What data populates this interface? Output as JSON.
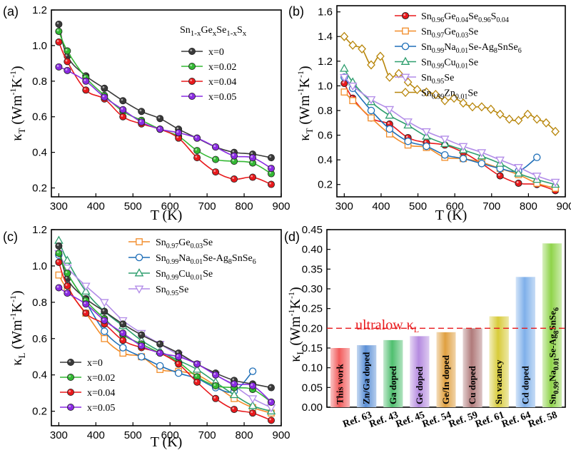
{
  "chart_data": [
    {
      "panel": "(a)",
      "type": "line",
      "xlabel": "T (K)",
      "ylabel": "κT (Wm⁻¹K⁻¹)",
      "xlim": [
        280,
        900
      ],
      "ylim": [
        0.15,
        1.2
      ],
      "xticks": [
        300,
        400,
        500,
        600,
        700,
        800,
        900
      ],
      "yticks": [
        0.2,
        0.4,
        0.6,
        0.8,
        1.0,
        1.2
      ],
      "legend_title": "Sn1-xGexSe1-xSx",
      "series": [
        {
          "name": "x=0",
          "color": "#3a3a3a",
          "marker": "circle",
          "x": [
            300,
            323,
            373,
            423,
            473,
            523,
            573,
            623,
            673,
            723,
            773,
            823,
            873
          ],
          "y": [
            1.12,
            0.94,
            0.83,
            0.76,
            0.69,
            0.63,
            0.59,
            0.53,
            0.48,
            0.43,
            0.4,
            0.39,
            0.37
          ]
        },
        {
          "name": "x=0.02",
          "color": "#33b833",
          "marker": "circle",
          "x": [
            300,
            323,
            373,
            423,
            473,
            523,
            573,
            623,
            673,
            723,
            773,
            823,
            873
          ],
          "y": [
            1.08,
            0.97,
            0.82,
            0.72,
            0.63,
            0.58,
            0.53,
            0.49,
            0.41,
            0.36,
            0.35,
            0.34,
            0.28
          ]
        },
        {
          "name": "x=0.04",
          "color": "#e8191c",
          "marker": "circle",
          "x": [
            300,
            323,
            373,
            423,
            473,
            523,
            573,
            623,
            673,
            723,
            773,
            823,
            873
          ],
          "y": [
            1.02,
            0.91,
            0.75,
            0.7,
            0.6,
            0.56,
            0.53,
            0.48,
            0.37,
            0.29,
            0.25,
            0.26,
            0.22
          ]
        },
        {
          "name": "x=0.05",
          "color": "#8a2be2",
          "marker": "circle",
          "x": [
            300,
            323,
            373,
            423,
            473,
            523,
            573,
            623,
            673,
            723,
            773,
            823,
            873
          ],
          "y": [
            0.88,
            0.86,
            0.8,
            0.71,
            0.64,
            0.57,
            0.53,
            0.51,
            0.48,
            0.43,
            0.38,
            0.37,
            0.31
          ]
        }
      ]
    },
    {
      "panel": "(b)",
      "type": "line",
      "xlabel": "T (K)",
      "ylabel": "κT (Wm⁻¹K⁻¹)",
      "xlim": [
        280,
        900
      ],
      "ylim": [
        0.1,
        1.65
      ],
      "xticks": [
        300,
        400,
        500,
        600,
        700,
        800,
        900
      ],
      "yticks": [
        0.2,
        0.4,
        0.6,
        0.8,
        1.0,
        1.2,
        1.4,
        1.6
      ],
      "series": [
        {
          "name": "Sn0.96Ge0.04Se0.96S0.04",
          "color": "#e8191c",
          "marker": "filled-circle",
          "x": [
            300,
            323,
            373,
            423,
            473,
            523,
            573,
            623,
            673,
            723,
            773,
            823,
            873
          ],
          "y": [
            1.02,
            0.9,
            0.74,
            0.69,
            0.58,
            0.54,
            0.52,
            0.46,
            0.37,
            0.27,
            0.21,
            0.2,
            0.15
          ]
        },
        {
          "name": "Sn0.97Ge0.03Se",
          "color": "#f28c28",
          "marker": "square",
          "x": [
            300,
            323,
            373,
            423,
            473,
            523,
            573,
            623,
            673,
            723,
            773,
            823,
            873
          ],
          "y": [
            0.95,
            0.88,
            0.74,
            0.61,
            0.52,
            0.5,
            0.42,
            0.41,
            0.38,
            0.33,
            0.28,
            0.21,
            0.17
          ]
        },
        {
          "name": "Sn0.99Na0.01Se-Ag8SnSe6",
          "color": "#1f6fb8",
          "marker": "circle",
          "x": [
            300,
            323,
            373,
            423,
            473,
            523,
            573,
            623,
            673,
            723,
            773,
            823
          ],
          "y": [
            1.07,
            0.98,
            0.8,
            0.65,
            0.55,
            0.51,
            0.44,
            0.41,
            0.37,
            0.33,
            0.31,
            0.42
          ]
        },
        {
          "name": "Sn0.99Cu0.01Se",
          "color": "#2e9e6e",
          "marker": "triangle",
          "x": [
            300,
            323,
            373,
            423,
            473,
            523,
            573,
            623,
            673,
            723,
            773,
            823,
            873
          ],
          "y": [
            1.14,
            1.03,
            0.87,
            0.76,
            0.68,
            0.59,
            0.53,
            0.48,
            0.43,
            0.37,
            0.29,
            0.24,
            0.2
          ]
        },
        {
          "name": "Sn0.95Se",
          "color": "#b28ce8",
          "marker": "down-triangle",
          "x": [
            300,
            323,
            373,
            423,
            473,
            523,
            573,
            623,
            673,
            723,
            773,
            823,
            873
          ],
          "y": [
            1.07,
            1.0,
            0.89,
            0.81,
            0.71,
            0.63,
            0.57,
            0.51,
            0.46,
            0.4,
            0.34,
            0.27,
            0.22
          ]
        },
        {
          "name": "Sn0.99Zn0.01Se",
          "color": "#b8860b",
          "marker": "diamond",
          "x": [
            300,
            323,
            348,
            373,
            398,
            423,
            448,
            473,
            498,
            523,
            548,
            573,
            598,
            623,
            648,
            673,
            698,
            723,
            748,
            773,
            798,
            823,
            848,
            873
          ],
          "y": [
            1.4,
            1.33,
            1.3,
            1.17,
            1.24,
            1.07,
            1.1,
            1.03,
            0.97,
            0.95,
            0.93,
            0.88,
            0.9,
            0.86,
            0.83,
            0.83,
            0.81,
            0.77,
            0.73,
            0.72,
            0.77,
            0.73,
            0.7,
            0.63
          ]
        }
      ]
    },
    {
      "panel": "(c)",
      "type": "line",
      "xlabel": "T (K)",
      "ylabel": "κL (Wm⁻¹K⁻¹)",
      "xlim": [
        280,
        900
      ],
      "ylim": [
        0.12,
        1.2
      ],
      "xticks": [
        300,
        400,
        500,
        600,
        700,
        800,
        900
      ],
      "yticks": [
        0.2,
        0.4,
        0.6,
        0.8,
        1.0,
        1.2
      ],
      "series": [
        {
          "name": "Sn0.97Ge0.03Se",
          "color": "#f28c28",
          "marker": "square",
          "x": [
            300,
            323,
            373,
            423,
            473,
            523,
            573,
            623,
            673,
            723,
            773,
            823,
            873
          ],
          "y": [
            0.95,
            0.87,
            0.74,
            0.6,
            0.52,
            0.5,
            0.43,
            0.42,
            0.4,
            0.34,
            0.27,
            0.22,
            0.19
          ]
        },
        {
          "name": "Sn0.99Na0.01Se-Ag8SnSe6",
          "color": "#1f6fb8",
          "marker": "circle",
          "x": [
            300,
            323,
            373,
            423,
            473,
            523,
            573,
            623,
            673,
            723,
            773,
            823
          ],
          "y": [
            1.06,
            0.96,
            0.8,
            0.64,
            0.55,
            0.5,
            0.45,
            0.41,
            0.38,
            0.33,
            0.31,
            0.42
          ]
        },
        {
          "name": "Sn0.99Cu0.01Se",
          "color": "#2e9e6e",
          "marker": "triangle",
          "x": [
            300,
            323,
            373,
            423,
            473,
            523,
            573,
            623,
            673,
            723,
            773,
            823,
            873
          ],
          "y": [
            1.14,
            1.03,
            0.86,
            0.75,
            0.67,
            0.59,
            0.53,
            0.48,
            0.43,
            0.36,
            0.29,
            0.23,
            0.2
          ]
        },
        {
          "name": "Sn0.95Se",
          "color": "#b28ce8",
          "marker": "down-triangle",
          "x": [
            300,
            323,
            373,
            423,
            473,
            523,
            573,
            623,
            673,
            723,
            773,
            823,
            873
          ],
          "y": [
            1.07,
            0.99,
            0.89,
            0.8,
            0.7,
            0.63,
            0.57,
            0.51,
            0.46,
            0.4,
            0.34,
            0.27,
            0.22
          ]
        },
        {
          "name": "x=0",
          "color": "#3a3a3a",
          "marker": "circle",
          "x": [
            300,
            323,
            373,
            423,
            473,
            523,
            573,
            623,
            673,
            723,
            773,
            823,
            873
          ],
          "y": [
            1.11,
            0.93,
            0.82,
            0.75,
            0.68,
            0.62,
            0.57,
            0.52,
            0.46,
            0.41,
            0.37,
            0.35,
            0.33
          ]
        },
        {
          "name": "x=0.02",
          "color": "#33b833",
          "marker": "circle",
          "x": [
            300,
            323,
            373,
            423,
            473,
            523,
            573,
            623,
            673,
            723,
            773,
            823,
            873
          ],
          "y": [
            1.07,
            0.96,
            0.81,
            0.71,
            0.62,
            0.57,
            0.52,
            0.47,
            0.39,
            0.34,
            0.33,
            0.32,
            0.25
          ]
        },
        {
          "name": "x=0.04",
          "color": "#e8191c",
          "marker": "circle",
          "x": [
            300,
            323,
            373,
            423,
            473,
            523,
            573,
            623,
            673,
            723,
            773,
            823,
            873
          ],
          "y": [
            1.02,
            0.89,
            0.74,
            0.68,
            0.59,
            0.55,
            0.52,
            0.46,
            0.36,
            0.27,
            0.21,
            0.19,
            0.15
          ]
        },
        {
          "name": "x=0.05",
          "color": "#8a2be2",
          "marker": "circle",
          "x": [
            300,
            323,
            373,
            423,
            473,
            523,
            573,
            623,
            673,
            723,
            773,
            823,
            873
          ],
          "y": [
            0.88,
            0.85,
            0.79,
            0.7,
            0.63,
            0.56,
            0.52,
            0.5,
            0.46,
            0.4,
            0.35,
            0.34,
            0.25
          ]
        }
      ]
    },
    {
      "panel": "(d)",
      "type": "bar",
      "ylabel": "κL (Wm⁻¹K⁻¹)",
      "ylim": [
        0,
        0.45
      ],
      "yticks": [
        0.0,
        0.05,
        0.1,
        0.15,
        0.2,
        0.25,
        0.3,
        0.35,
        0.4,
        0.45
      ],
      "reference_line": {
        "value": 0.2,
        "label": "ultralow κL",
        "color": "#e8191c"
      },
      "bars": [
        {
          "label": "This work",
          "ref": "",
          "value": 0.15,
          "color": "#f25a5a"
        },
        {
          "label": "Zn/Ga doped",
          "ref": "Ref. 63",
          "value": 0.157,
          "color": "#5b8fd6"
        },
        {
          "label": "Ga doped",
          "ref": "Ref. 43",
          "value": 0.17,
          "color": "#4fbf6f"
        },
        {
          "label": "Ge doped",
          "ref": "Ref. 45",
          "value": 0.18,
          "color": "#b58be0"
        },
        {
          "label": "Ge/In doped",
          "ref": "Ref. 54",
          "value": 0.19,
          "color": "#e0a040"
        },
        {
          "label": "Cu doped",
          "ref": "Ref. 59",
          "value": 0.2,
          "color": "#b07a7a"
        },
        {
          "label": "Sn vacancy",
          "ref": "Ref. 61",
          "value": 0.23,
          "color": "#d8cc3a"
        },
        {
          "label": "Cd doped",
          "ref": "Ref. 64",
          "value": 0.33,
          "color": "#7fb0ea"
        },
        {
          "label": "Sn0.99Na0.01Se-Ag8SnSe6",
          "ref": "Ref. 58",
          "value": 0.415,
          "color": "#8fd44a"
        }
      ]
    }
  ]
}
